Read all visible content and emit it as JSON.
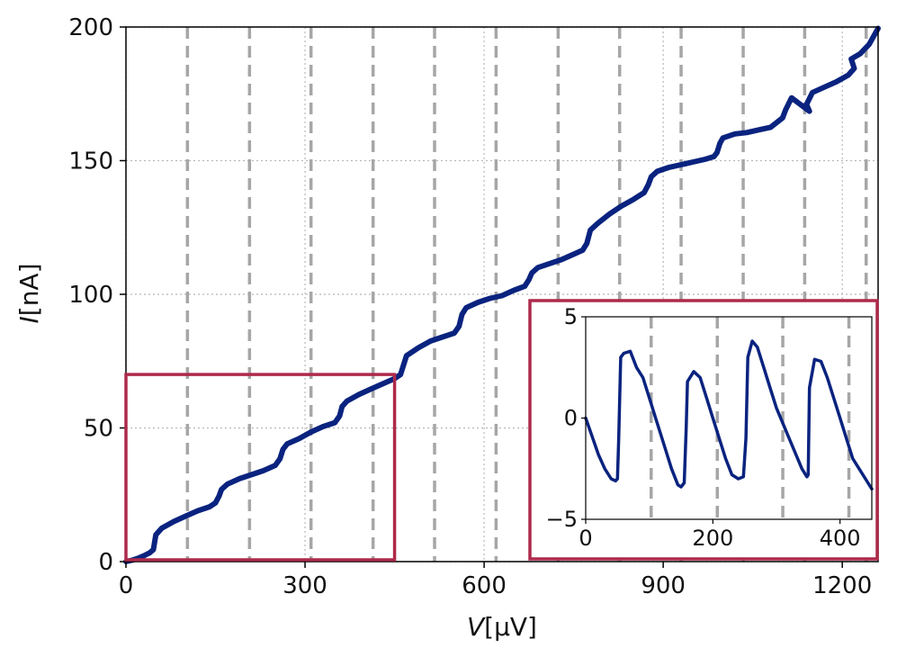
{
  "colors": {
    "curve": "#0a237f",
    "step_lines": "#a6a6a6",
    "grid": "#b8b8b8",
    "box": "#ad2a4a",
    "axes": "#000000"
  },
  "chart_data": [
    {
      "type": "line",
      "title": "",
      "xlabel_main": "V",
      "xlabel_unit": "[μV]",
      "ylabel_main": "I",
      "ylabel_unit": "[nA]",
      "xlim": [
        0,
        1260
      ],
      "ylim": [
        0,
        200
      ],
      "xticks": [
        0,
        300,
        600,
        900,
        1200
      ],
      "yticks": [
        0,
        50,
        100,
        150,
        200
      ],
      "grid": true,
      "vertical_dashed_lines": [
        103,
        207,
        310,
        414,
        517,
        620,
        724,
        827,
        930,
        1034,
        1137,
        1240
      ],
      "series": [
        {
          "x": [
            0,
            10,
            20,
            30,
            40,
            46,
            50,
            60,
            80,
            100,
            120,
            140,
            150,
            156,
            160,
            170,
            190,
            210,
            230,
            250,
            258,
            263,
            270,
            290,
            310,
            330,
            350,
            358,
            362,
            370,
            390,
            410,
            430,
            450,
            460,
            465,
            470,
            490,
            510,
            530,
            550,
            558,
            563,
            570,
            590,
            610,
            630,
            650,
            668,
            675,
            680,
            690,
            710,
            730,
            750,
            765,
            772,
            778,
            790,
            810,
            830,
            850,
            868,
            875,
            880,
            890,
            910,
            930,
            950,
            970,
            985,
            990,
            995,
            1000,
            1020,
            1040,
            1060,
            1080,
            1100,
            1105,
            1115,
            1130,
            1145,
            1140,
            1150,
            1170,
            1190,
            1210,
            1220,
            1215,
            1230,
            1245,
            1260
          ],
          "y": [
            0,
            0.5,
            1.2,
            2.2,
            3.3,
            4.5,
            10,
            12.5,
            15,
            17,
            19,
            20.5,
            22,
            24.5,
            27,
            29,
            31,
            32.5,
            34,
            36,
            38.5,
            42,
            44,
            46,
            48.5,
            50.5,
            52,
            54.5,
            58,
            60,
            62.5,
            64.5,
            66.5,
            68.5,
            70,
            73.5,
            77,
            80,
            82.5,
            84,
            85.5,
            88,
            92.5,
            95,
            97,
            98.5,
            99.5,
            101.5,
            103,
            105.5,
            108,
            110,
            111.5,
            113,
            115,
            116.5,
            119,
            124,
            126.5,
            130,
            133,
            135.5,
            138,
            141,
            144,
            146,
            147.5,
            148.5,
            149.5,
            150.5,
            151.5,
            153,
            156.5,
            158.5,
            160,
            160.5,
            161.5,
            162.5,
            166,
            169,
            173.5,
            171,
            168.5,
            171,
            175.5,
            177.5,
            179.5,
            182,
            184.5,
            188,
            190,
            193.5,
            199.5
          ]
        }
      ]
    },
    {
      "type": "line",
      "title": "",
      "xlim": [
        0,
        450
      ],
      "ylim": [
        -5,
        5
      ],
      "xticks": [
        0,
        200,
        400
      ],
      "yticks": [
        -5,
        0,
        5
      ],
      "grid": false,
      "vertical_dashed_lines": [
        103,
        207,
        310,
        414
      ],
      "series": [
        {
          "x": [
            0,
            10,
            20,
            30,
            40,
            47,
            50,
            52,
            55,
            60,
            70,
            80,
            90,
            100,
            110,
            120,
            135,
            145,
            150,
            155,
            158,
            160,
            170,
            180,
            190,
            200,
            210,
            220,
            230,
            240,
            248,
            252,
            255,
            262,
            270,
            280,
            290,
            300,
            320,
            340,
            348,
            350,
            352,
            360,
            370,
            380,
            390,
            400,
            410,
            420,
            430,
            440,
            450
          ],
          "y": [
            0,
            -0.9,
            -1.8,
            -2.5,
            -3.0,
            -3.1,
            -3.0,
            -1.0,
            3.0,
            3.2,
            3.3,
            2.5,
            2.0,
            1.0,
            0,
            -1.0,
            -2.5,
            -3.3,
            -3.4,
            -3.2,
            -0.5,
            1.8,
            2.3,
            2.0,
            1.0,
            0,
            -1.0,
            -2.0,
            -2.8,
            -3.0,
            -2.9,
            -1.0,
            3.0,
            3.8,
            3.5,
            2.5,
            1.5,
            0.5,
            -1.0,
            -2.5,
            -2.9,
            -2.8,
            1.5,
            2.9,
            2.8,
            2.0,
            1.0,
            0,
            -1.0,
            -2.0,
            -2.5,
            -3.0,
            -3.5
          ]
        }
      ]
    }
  ]
}
